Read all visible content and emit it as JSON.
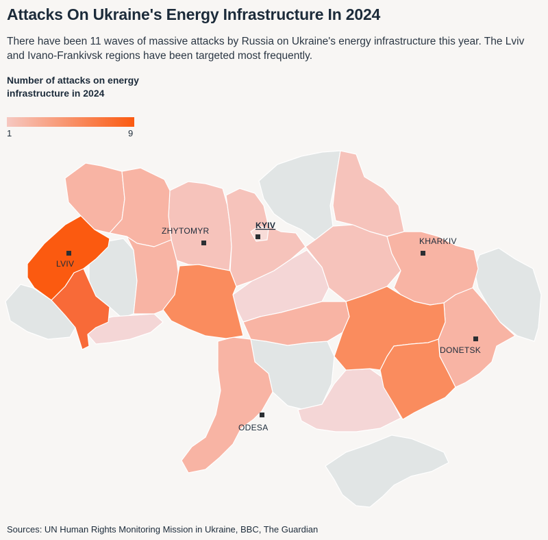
{
  "header": {
    "title": "Attacks On Ukraine's Energy Infrastructure In 2024",
    "subtitle": "There have been 11 waves of massive attacks by Russia on Ukraine's energy infrastructure this year. The Lviv and Ivano-Frankivsk regions have been targeted most frequently."
  },
  "legend": {
    "title": "Number of attacks on energy infrastructure in 2024",
    "min": "1",
    "max": "9",
    "color_min": "#f6c8c1",
    "color_max": "#fb5a10"
  },
  "colors": {
    "no_data": "#e1e5e5",
    "background": "#f8f6f4"
  },
  "cities": {
    "lviv": "LVIV",
    "zhytomyr": "ZHYTOMYR",
    "kyiv": "KYIV",
    "kharkiv": "KHARKIV",
    "donetsk": "DONETSK",
    "odesa": "ODESA"
  },
  "footer": {
    "sources": "Sources: UN Human Rights Monitoring Mission in Ukraine, BBC, The Guardian"
  }
}
